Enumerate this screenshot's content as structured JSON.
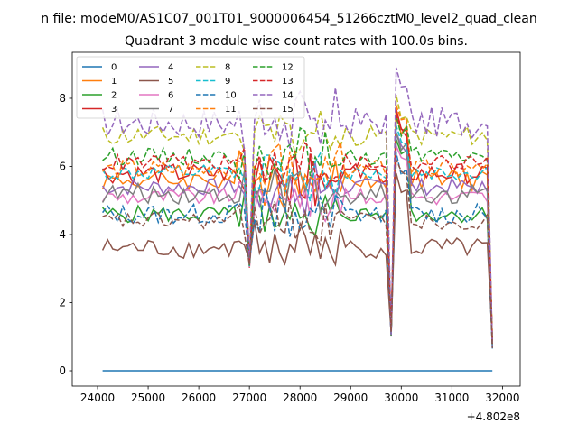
{
  "chart_data": {
    "type": "line",
    "suptitle": "n file: modeM0/AS1C07_001T01_9000006454_51266cztM0_level2_quad_clean",
    "title": "Quadrant 3 module wise count rates with 100.0s bins.",
    "xlabel": "",
    "ylabel": "",
    "x_offset_label": "+4.802e8",
    "xlim": [
      23500,
      32350
    ],
    "ylim": [
      -0.45,
      9.35
    ],
    "xticks": [
      24000,
      25000,
      26000,
      27000,
      28000,
      29000,
      30000,
      31000,
      32000
    ],
    "xtick_labels": [
      "24000",
      "25000",
      "26000",
      "27000",
      "28000",
      "29000",
      "30000",
      "31000",
      "32000"
    ],
    "yticks": [
      0,
      2,
      4,
      6,
      8
    ],
    "ytick_labels": [
      "0",
      "2",
      "4",
      "6",
      "8"
    ],
    "legend_position": "upper-left",
    "x_start": 24100,
    "x_step": 100,
    "n_points": 78,
    "dip_indices": [
      29,
      57,
      77
    ],
    "dip_values": [
      3.0,
      1.0,
      0.65
    ],
    "series": [
      {
        "name": "0",
        "color": "#1f77b4",
        "dashed": false,
        "base": 0.0,
        "amp": 0.0,
        "seed": 0,
        "spike": 0.0
      },
      {
        "name": "1",
        "color": "#ff7f0e",
        "dashed": false,
        "base": 5.6,
        "amp": 0.3,
        "seed": 1,
        "spike": 7.6
      },
      {
        "name": "2",
        "color": "#2ca02c",
        "dashed": false,
        "base": 4.6,
        "amp": 0.25,
        "seed": 2,
        "spike": 6.8
      },
      {
        "name": "3",
        "color": "#d62728",
        "dashed": false,
        "base": 5.8,
        "amp": 0.3,
        "seed": 3,
        "spike": 7.7
      },
      {
        "name": "4",
        "color": "#9467bd",
        "dashed": false,
        "base": 5.4,
        "amp": 0.25,
        "seed": 4,
        "spike": 7.0
      },
      {
        "name": "5",
        "color": "#8c564b",
        "dashed": false,
        "base": 3.6,
        "amp": 0.3,
        "seed": 5,
        "spike": 5.8
      },
      {
        "name": "6",
        "color": "#e377c2",
        "dashed": false,
        "base": 5.1,
        "amp": 0.25,
        "seed": 6,
        "spike": 6.6
      },
      {
        "name": "7",
        "color": "#7f7f7f",
        "dashed": false,
        "base": 5.2,
        "amp": 0.3,
        "seed": 7,
        "spike": 7.0
      },
      {
        "name": "8",
        "color": "#bcbd22",
        "dashed": true,
        "base": 6.9,
        "amp": 0.3,
        "seed": 8,
        "spike": 8.1
      },
      {
        "name": "9",
        "color": "#17becf",
        "dashed": true,
        "base": 5.8,
        "amp": 0.25,
        "seed": 9,
        "spike": 7.2
      },
      {
        "name": "10",
        "color": "#1f77b4",
        "dashed": true,
        "base": 4.6,
        "amp": 0.3,
        "seed": 10,
        "spike": 6.4
      },
      {
        "name": "11",
        "color": "#ff7f0e",
        "dashed": true,
        "base": 5.9,
        "amp": 0.3,
        "seed": 11,
        "spike": 7.8
      },
      {
        "name": "12",
        "color": "#2ca02c",
        "dashed": true,
        "base": 6.3,
        "amp": 0.25,
        "seed": 12,
        "spike": 7.5
      },
      {
        "name": "13",
        "color": "#d62728",
        "dashed": true,
        "base": 6.1,
        "amp": 0.25,
        "seed": 13,
        "spike": 7.5
      },
      {
        "name": "14",
        "color": "#9467bd",
        "dashed": true,
        "base": 7.3,
        "amp": 0.45,
        "seed": 14,
        "spike": 8.9
      },
      {
        "name": "15",
        "color": "#8c564b",
        "dashed": true,
        "base": 4.4,
        "amp": 0.25,
        "seed": 15,
        "spike": 6.2
      }
    ]
  }
}
